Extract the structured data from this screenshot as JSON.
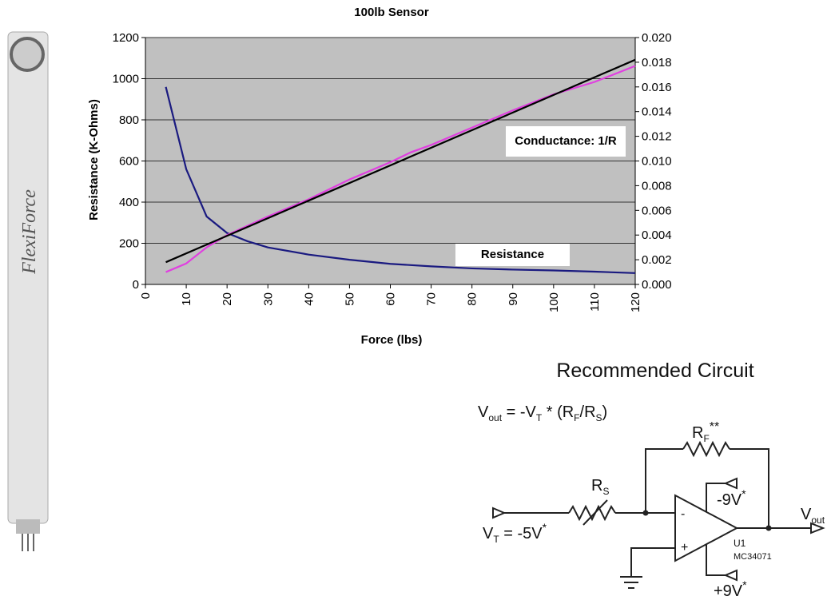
{
  "chart_data": {
    "type": "line",
    "title": "100lb Sensor",
    "xlabel": "Force (lbs)",
    "ylabel": "Resistance (K-Ohms)",
    "xlim": [
      0,
      120
    ],
    "xticks": [
      0,
      10,
      20,
      30,
      40,
      50,
      60,
      70,
      80,
      90,
      100,
      110,
      120
    ],
    "ylim": [
      0,
      1200
    ],
    "yticks": [
      0,
      200,
      400,
      600,
      800,
      1000,
      1200
    ],
    "y2lim": [
      0,
      0.02
    ],
    "y2ticks": [
      {
        "value": 0,
        "label": "0.000"
      },
      {
        "value": 0.002,
        "label": "0.002"
      },
      {
        "value": 0.004,
        "label": "0.004"
      },
      {
        "value": 0.006,
        "label": "0.006"
      },
      {
        "value": 0.008,
        "label": "0.008"
      },
      {
        "value": 0.01,
        "label": "0.010"
      },
      {
        "value": 0.012,
        "label": "0.012"
      },
      {
        "value": 0.014,
        "label": "0.014"
      },
      {
        "value": 0.016,
        "label": "0.016"
      },
      {
        "value": 0.018,
        "label": "0.018"
      },
      {
        "value": 0.02,
        "label": "0.020"
      }
    ],
    "grid": true,
    "background": "#c0c0c0",
    "series": [
      {
        "name": "Resistance",
        "color": "#1a1a80",
        "x": [
          5,
          10,
          15,
          20,
          25,
          30,
          40,
          50,
          60,
          70,
          80,
          90,
          100,
          110,
          120
        ],
        "values": [
          960,
          560,
          330,
          250,
          210,
          180,
          145,
          120,
          100,
          88,
          78,
          72,
          68,
          62,
          55
        ]
      },
      {
        "name": "Conductance: 1/R",
        "color": "#e040e0",
        "axis": "y2",
        "x": [
          5,
          10,
          15,
          20,
          30,
          40,
          50,
          60,
          65,
          70,
          80,
          90,
          100,
          110,
          120
        ],
        "values": [
          0.001,
          0.0017,
          0.003,
          0.004,
          0.0055,
          0.0069,
          0.0085,
          0.0099,
          0.0107,
          0.0113,
          0.0127,
          0.0141,
          0.0154,
          0.0164,
          0.0177
        ]
      },
      {
        "color": "#000000",
        "axis": "y2",
        "x": [
          5,
          120
        ],
        "values": [
          0.0018,
          0.0182
        ]
      }
    ]
  },
  "sensor": {
    "label": "FlexiForce"
  },
  "circuit": {
    "title": "Recommended Circuit",
    "formula": [
      "V",
      "out",
      " = -V",
      "T",
      " * (R",
      "F",
      "/R",
      "S",
      ")"
    ],
    "rf": [
      "R",
      "F",
      "**"
    ],
    "rs": [
      "R",
      "S"
    ],
    "neg_supply": [
      "-9V",
      "*"
    ],
    "vt": [
      "V",
      "T",
      " = -5V",
      "*"
    ],
    "vout": [
      "V",
      "out"
    ],
    "minus": "-",
    "plus": "+",
    "u1": "U1",
    "part": "MC34071",
    "pos_supply": [
      "+9V",
      "*"
    ]
  }
}
